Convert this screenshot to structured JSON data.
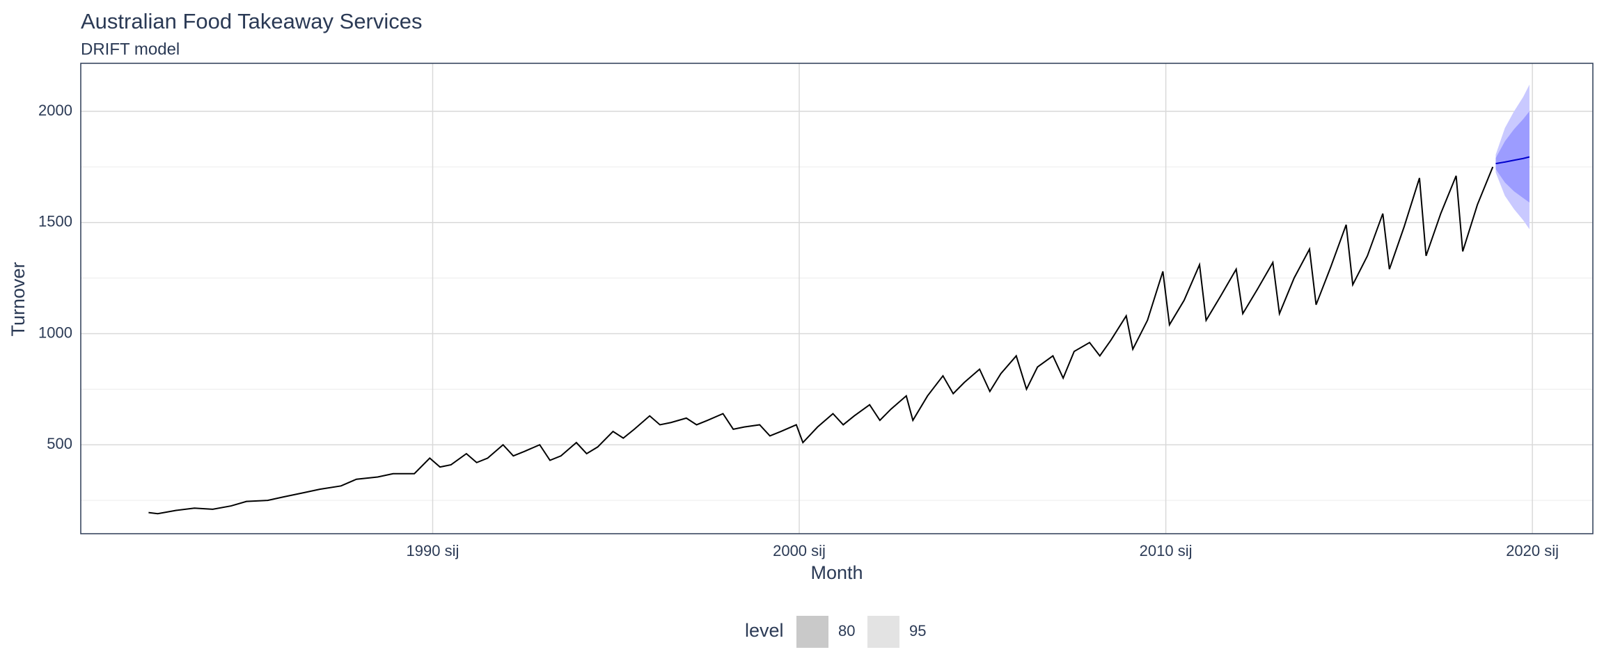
{
  "chart_data": {
    "type": "line",
    "title": "Australian Food Takeaway Services",
    "subtitle": "DRIFT model",
    "x_label": "Month",
    "y_label": "Turnover",
    "xlim": [
      1980.4,
      2021.65
    ],
    "xticks": [
      {
        "value": 1990,
        "label": "1990 sij"
      },
      {
        "value": 2000,
        "label": "2000 sij"
      },
      {
        "value": 2010,
        "label": "2010 sij"
      },
      {
        "value": 2020,
        "label": "2020 sij"
      }
    ],
    "ylim": [
      100,
      2216
    ],
    "yticks": [
      500,
      1000,
      1500,
      2000
    ],
    "grid": true,
    "x": [
      1982.25,
      1982.5,
      1983,
      1983.5,
      1984,
      1984.5,
      1984.92,
      1985.5,
      1985.92,
      1986.5,
      1986.92,
      1987.5,
      1987.92,
      1988.5,
      1988.92,
      1989.5,
      1989.92,
      1990.2,
      1990.5,
      1990.92,
      1991.2,
      1991.5,
      1991.92,
      1992.2,
      1992.5,
      1992.92,
      1993.2,
      1993.5,
      1993.92,
      1994.2,
      1994.5,
      1994.92,
      1995.2,
      1995.5,
      1995.92,
      1996.2,
      1996.5,
      1996.92,
      1997.2,
      1997.5,
      1997.92,
      1998.2,
      1998.5,
      1998.92,
      1999.2,
      1999.5,
      1999.92,
      2000.1,
      2000.5,
      2000.92,
      2001.2,
      2001.5,
      2001.92,
      2002.2,
      2002.5,
      2002.92,
      2003.1,
      2003.5,
      2003.92,
      2004.2,
      2004.5,
      2004.92,
      2005.2,
      2005.5,
      2005.92,
      2006.2,
      2006.5,
      2006.92,
      2007.2,
      2007.5,
      2007.92,
      2008.2,
      2008.5,
      2008.92,
      2009.1,
      2009.5,
      2009.92,
      2010.1,
      2010.5,
      2010.92,
      2011.1,
      2011.5,
      2011.92,
      2012.1,
      2012.5,
      2012.92,
      2013.1,
      2013.5,
      2013.92,
      2014.1,
      2014.5,
      2014.92,
      2015.1,
      2015.5,
      2015.92,
      2016.1,
      2016.5,
      2016.92,
      2017.1,
      2017.5,
      2017.92,
      2018.1,
      2018.5,
      2018.92
    ],
    "values": [
      195,
      190,
      205,
      215,
      210,
      225,
      245,
      250,
      265,
      285,
      300,
      315,
      345,
      355,
      370,
      370,
      440,
      400,
      410,
      460,
      420,
      440,
      500,
      450,
      470,
      500,
      430,
      450,
      510,
      460,
      490,
      560,
      530,
      570,
      630,
      590,
      600,
      620,
      590,
      610,
      640,
      570,
      580,
      590,
      540,
      560,
      590,
      510,
      580,
      640,
      590,
      630,
      680,
      610,
      660,
      720,
      610,
      720,
      810,
      730,
      780,
      840,
      740,
      820,
      900,
      750,
      850,
      900,
      800,
      920,
      960,
      900,
      970,
      1080,
      930,
      1060,
      1280,
      1040,
      1150,
      1310,
      1060,
      1170,
      1290,
      1090,
      1200,
      1320,
      1090,
      1250,
      1380,
      1130,
      1300,
      1490,
      1220,
      1350,
      1540,
      1290,
      1480,
      1700,
      1350,
      1540,
      1710,
      1370,
      1580,
      1750
    ],
    "color": "#000000",
    "forecast": {
      "x": [
        2019.0,
        2019.25,
        2019.5,
        2019.75,
        2019.92
      ],
      "mean": [
        1765,
        1772,
        1780,
        1788,
        1795
      ],
      "color": "#0000cc",
      "intervals": [
        {
          "level": 95,
          "lower": [
            1725,
            1620,
            1560,
            1510,
            1470
          ],
          "upper": [
            1805,
            1925,
            2000,
            2065,
            2120
          ],
          "color": "#c9c9ff",
          "legend_color": "#e3e3e3"
        },
        {
          "level": 80,
          "lower": [
            1740,
            1680,
            1640,
            1610,
            1590
          ],
          "upper": [
            1790,
            1865,
            1920,
            1965,
            2000
          ],
          "color": "#9c9cff",
          "legend_color": "#c9c9c9"
        }
      ]
    },
    "legend": {
      "title": "level",
      "position": "bottom"
    }
  }
}
